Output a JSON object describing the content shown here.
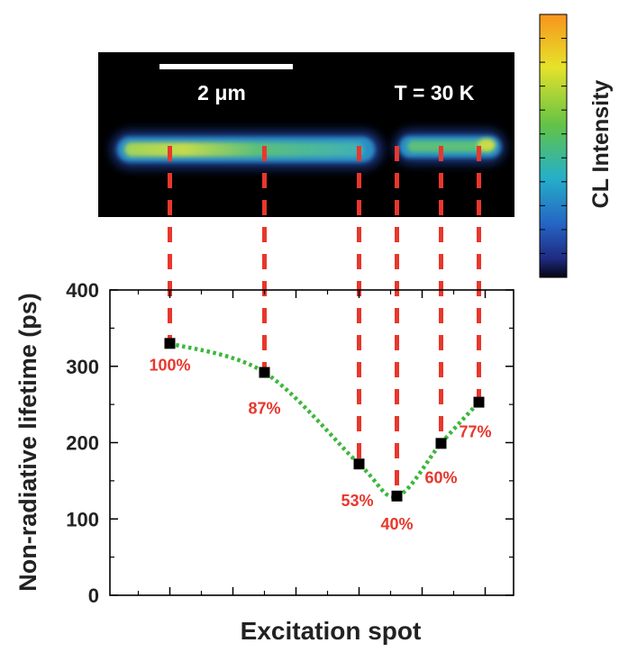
{
  "colors": {
    "dashed_guides": "#e8372c",
    "fit_curve": "#3cb83c",
    "marker": "#000000",
    "percent_labels": "#e8372c",
    "image_background": "#000000",
    "colorbar_top": "#f7941d",
    "colorbar_bottom": "#000000"
  },
  "image_panel": {
    "scale_bar_label": "2 μm",
    "temperature_label": "T = 30 K"
  },
  "colorbar": {
    "label": "CL Intensity"
  },
  "chart_data": {
    "type": "scatter",
    "title": "",
    "xlabel": "Excitation spot",
    "ylabel": "Non-radiative lifetime (ps)",
    "ylim": [
      0,
      400
    ],
    "y_ticks": [
      "0",
      "100",
      "200",
      "300",
      "400"
    ],
    "x_tick_labels_shown": false,
    "grid": false,
    "series": [
      {
        "x": [
          1,
          2.5,
          4,
          4.6,
          5.3,
          5.9
        ],
        "values": [
          330,
          292,
          172,
          130,
          199,
          253
        ],
        "labels": [
          "100%",
          "87%",
          "53%",
          "40%",
          "60%",
          "77%"
        ],
        "fit": "dotted-spline"
      }
    ],
    "xlim": [
      0.05,
      6.45
    ]
  }
}
